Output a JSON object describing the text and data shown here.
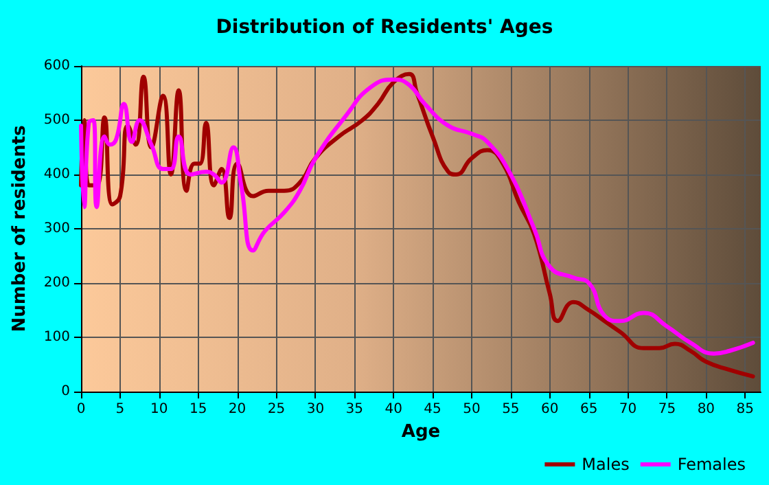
{
  "chart_data": {
    "type": "line",
    "title": "Distribution of Residents' Ages",
    "xlabel": "Age",
    "ylabel": "Number of residents",
    "xlim": [
      0,
      87
    ],
    "xticks": [
      0,
      5,
      10,
      15,
      20,
      25,
      30,
      35,
      40,
      45,
      50,
      55,
      60,
      65,
      70,
      75,
      80,
      85
    ],
    "ylim": [
      0,
      600
    ],
    "yticks": [
      0,
      100,
      200,
      300,
      400,
      500,
      600
    ],
    "grid": true,
    "legend": "bottom right",
    "marker": "none",
    "line_style": "solid",
    "series": [
      {
        "name": "Males",
        "color": "#a00000",
        "x": [
          0,
          0.4,
          1,
          2,
          3,
          4,
          5,
          6,
          7,
          8,
          9,
          10.5,
          11.5,
          12.5,
          13.5,
          14.5,
          15.2,
          16,
          17,
          18,
          19,
          20,
          22,
          24,
          26,
          28,
          30,
          33,
          36,
          38,
          40,
          42,
          43,
          45,
          47,
          48,
          50,
          52,
          54,
          56,
          58,
          60,
          61,
          63,
          65,
          67,
          69,
          72,
          74,
          76,
          78,
          80,
          83,
          86
        ],
        "values": [
          380,
          500,
          380,
          380,
          505,
          345,
          360,
          490,
          455,
          580,
          450,
          545,
          400,
          555,
          370,
          420,
          420,
          495,
          380,
          410,
          320,
          420,
          360,
          370,
          370,
          385,
          430,
          470,
          500,
          530,
          570,
          585,
          550,
          470,
          405,
          400,
          430,
          445,
          420,
          350,
          290,
          180,
          130,
          165,
          150,
          130,
          110,
          80,
          80,
          88,
          75,
          55,
          40,
          28
        ]
      },
      {
        "name": "Females",
        "color": "#ff00ff",
        "x": [
          0,
          0.4,
          1,
          1.6,
          2,
          3,
          3.7,
          4.5,
          5.5,
          6.5,
          7.5,
          9,
          10.5,
          11.5,
          12.5,
          14,
          16,
          17,
          18,
          19.5,
          20.5,
          22,
          23.5,
          26,
          28,
          30,
          34,
          37,
          40,
          42,
          44,
          47,
          50,
          52,
          55,
          58,
          60,
          63,
          65,
          67,
          69,
          72,
          75,
          78,
          81,
          83,
          86
        ],
        "values": [
          490,
          340,
          495,
          500,
          340,
          470,
          455,
          465,
          530,
          460,
          500,
          455,
          410,
          410,
          470,
          400,
          405,
          400,
          385,
          450,
          380,
          260,
          295,
          330,
          370,
          430,
          510,
          560,
          575,
          565,
          530,
          490,
          475,
          460,
          400,
          300,
          230,
          210,
          200,
          140,
          130,
          145,
          120,
          90,
          70,
          75,
          90
        ]
      }
    ]
  }
}
